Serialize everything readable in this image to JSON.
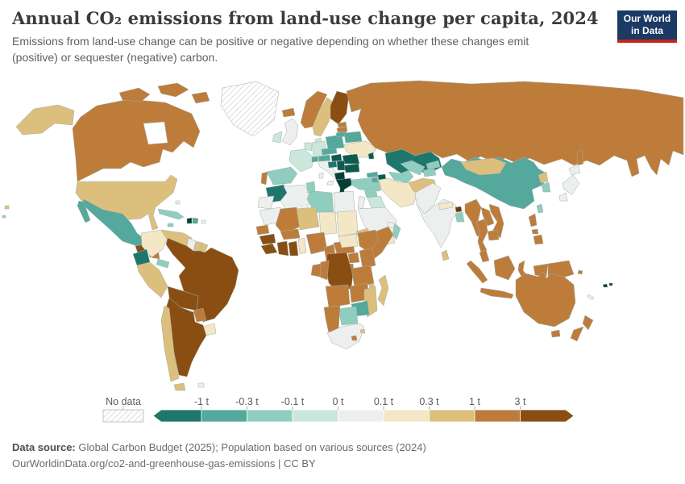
{
  "header": {
    "title": "Annual CO₂ emissions from land-use change per capita, 2024",
    "subtitle": "Emissions from land-use change can be positive or negative depending on whether these changes emit (positive) or sequester (negative) carbon."
  },
  "logo": {
    "line1": "Our World",
    "line2": "in Data",
    "bg_color": "#1b3a64",
    "accent_color": "#c0261c"
  },
  "legend": {
    "no_data_label": "No data",
    "tick_labels": [
      "-1 t",
      "-0.3 t",
      "-0.1 t",
      "0 t",
      "0.1 t",
      "0.3 t",
      "1 t",
      "3 t"
    ]
  },
  "footer": {
    "source_label": "Data source:",
    "source_text": " Global Carbon Budget (2025); Population based on various sources (2024)",
    "link_line": "OurWorldinData.org/co2-and-greenhouse-gas-emissions | CC BY"
  },
  "chart_data": {
    "type": "choropleth",
    "title": "Annual CO₂ emissions from land-use change per capita, 2024",
    "unit": "t per person",
    "legend_position": "bottom",
    "bins": [
      {
        "id": "lt-1",
        "label": "< -1 t",
        "color": "#1E776D"
      },
      {
        "id": "-1_-0.3",
        "label": "-1 to -0.3 t",
        "color": "#54A89C"
      },
      {
        "id": "-0.3_-0.1",
        "label": "-0.3 to -0.1 t",
        "color": "#8FCEBE"
      },
      {
        "id": "-0.1_0",
        "label": "-0.1 to 0 t",
        "color": "#CBE7DC"
      },
      {
        "id": "0_0.1",
        "label": "0 to 0.1 t",
        "color": "#EDEFEE"
      },
      {
        "id": "0.1_0.3",
        "label": "0.1 to 0.3 t",
        "color": "#F3E7C5"
      },
      {
        "id": "0.3_1",
        "label": "0.3 to 1 t",
        "color": "#DDBF7D"
      },
      {
        "id": "1_3",
        "label": "1 to 3 t",
        "color": "#BE7C3A"
      },
      {
        "id": "gt3",
        "label": "> 3 t",
        "color": "#8B4E12"
      }
    ],
    "extra_shades": {
      "lt-1-deep": "#0D5A50",
      "lt-1-deepest": "#063F38",
      "gt3-deep": "#6B3A06",
      "nodata": "pattern",
      "nodata_line_color": "#d4d4d4",
      "nodata_border": "#c6c6c6"
    },
    "countries": {
      "greenland": "nodata",
      "alaska": "0.3_1",
      "canada": "1_3",
      "arctic1": "1_3",
      "arctic2": "1_3",
      "arctic3": "1_3",
      "usa": "0.3_1",
      "mexico": "-1_-0.3",
      "baja": "-1_-0.3",
      "guatemala": "gt3",
      "honduras_nicaragua": "1_3",
      "costa_panama": "-0.3_-0.1",
      "cuba": "-0.3_-0.1",
      "jamaica": "-0.3_-0.1",
      "haiti": "lt-1-deepest",
      "domrep": "-1_-0.3",
      "puertorico": "0_0.1",
      "bahamas": "0_0.1",
      "colombia": "0.1_0.3",
      "venezuela": "0.3_1",
      "guyana": "0_0.1",
      "suriname": "0.3_1",
      "frguiana": "0.3_1",
      "ecuador": "lt-1",
      "peru": "0.3_1",
      "brazil": "gt3",
      "bolivia": "gt3",
      "paraguay": "1_3",
      "uruguay": "0.1_0.3",
      "argentina": "gt3",
      "chile": "0.3_1",
      "tierradelfuego": "0.3_1",
      "falklands": "0_0.1",
      "iceland": "1_3",
      "norway": "1_3",
      "sweden": "0.3_1",
      "finland": "gt3",
      "denmark": "-0.1_0",
      "uk": "0_0.1",
      "ireland": "-0.1_0",
      "netherlands_belgium": "-0.1_0",
      "germany": "-0.1_0",
      "france": "-0.1_0",
      "spain": "-0.3_-0.1",
      "portugal": "1_3",
      "italy": "0_0.1",
      "sicily": "0_0.1",
      "sardinia": "0_0.1",
      "switzerland": "-1_-0.3",
      "austria": "-1_-0.3",
      "czech_slovakia": "-1_-0.3",
      "poland": "-1_-0.3",
      "estonia": "1_3",
      "latvia": "1_3",
      "lithuania": "-1_-0.3",
      "belarus": "-1_-0.3",
      "ukraine": "0.1_0.3",
      "moldova": "lt-1-deep",
      "hungary": "lt-1-deep",
      "romania": "lt-1-deep",
      "croatia": "lt-1",
      "serbia": "lt-1-deep",
      "bulgaria": "lt-1-deep",
      "albania_macedonia": "lt-1-deepest",
      "greece": "lt-1-deepest",
      "crete": "lt-1-deepest",
      "turkey": "-0.3_-0.1",
      "cyprus": "-0.3_-0.1",
      "russia": "1_3",
      "sakhalin": "1_3",
      "kazakhstan": "lt-1",
      "georgia": "-1_-0.3",
      "azerbaijan": "lt-1-deep",
      "armenia": "-1_-0.3",
      "syria": "-0.3_-0.1",
      "lebanon_israel_jordan": "0_0.1",
      "iraq": "-0.1_0",
      "saudi": "0_0.1",
      "yemen": "0.1_0.3",
      "oman": "-0.3_-0.1",
      "uae_qatar": "0_0.1",
      "iran": "0.1_0.3",
      "turkmenistan": "-0.3_-0.1",
      "uzbekistan": "-0.3_-0.1",
      "kyrgyzstan": "-0.3_-0.1",
      "tajikistan": "-0.3_-0.1",
      "afghanistan": "0.3_1",
      "pakistan": "0_0.1",
      "india": "0_0.1",
      "nepal": "0.1_0.3",
      "bhutan": "gt3-deep",
      "bangladesh": "-0.3_-0.1",
      "srilanka": "0.3_1",
      "china": "-1_-0.3",
      "mongolia": "0.3_1",
      "nkorea": "0.3_1",
      "skorea": "-0.3_-0.1",
      "hokkaido": "0_0.1",
      "honshu": "0_0.1",
      "kyushu": "0_0.1",
      "taiwan": "-0.3_-0.1",
      "myanmar": "1_3",
      "thailand": "1_3",
      "laos": "1_3",
      "vietnam": "1_3",
      "cambodia": "1_3",
      "malaysia_pen": "1_3",
      "sumatra": "1_3",
      "java": "1_3",
      "borneo": "1_3",
      "sulawesi": "1_3",
      "westpapua": "1_3",
      "png": "1_3",
      "luzon": "1_3",
      "visayas": "1_3",
      "mindanao": "1_3",
      "timor": "0.3_1",
      "morocco": "lt-1",
      "wsahara": "0_0.1",
      "algeria": "0_0.1",
      "tunisia": "-0.3_-0.1",
      "libya": "-0.3_-0.1",
      "egypt": "0_0.1",
      "mauritania": "0_0.1",
      "mali": "1_3",
      "niger": "0.3_1",
      "chad": "0.1_0.3",
      "sudan": "0.1_0.3",
      "eritrea": "0.3_1",
      "senegal": "1_3",
      "guinea": "gt3",
      "sierra_liberia": "gt3",
      "ivorycoast": "gt3",
      "ghana": "gt3",
      "togo_benin": "0.1_0.3",
      "burkina": "1_3",
      "nigeria": "1_3",
      "cameroon": "1_3",
      "car": "1_3",
      "ssudan": "0.1_0.3",
      "ethiopia": "1_3",
      "somalia": "1_3",
      "uganda": "1_3",
      "kenya": "1_3",
      "rwanda_burundi": "1_3",
      "drc": "gt3",
      "congo": "1_3",
      "gabon": "1_3",
      "tanzania": "1_3",
      "angola": "1_3",
      "zambia": "1_3",
      "malawi": "0.3_1",
      "mozambique": "0.3_1",
      "zimbabwe": "-1_-0.3",
      "botswana": "-0.3_-0.1",
      "namibia": "1_3",
      "safrica": "0_0.1",
      "lesotho": "1_3",
      "swaziland": "0.3_1",
      "madagascar": "0.3_1",
      "australia": "1_3",
      "tasmania": "1_3",
      "nz_north": "1_3",
      "nz_south": "1_3",
      "fiji1": "lt-1-deepest",
      "fiji2": "lt-1-deepest",
      "newcaledonia": "0_0.1",
      "solomon": "1_3",
      "pacific_speck1": "0.3_1",
      "pacific_speck2": "-0.3_-0.1"
    }
  }
}
